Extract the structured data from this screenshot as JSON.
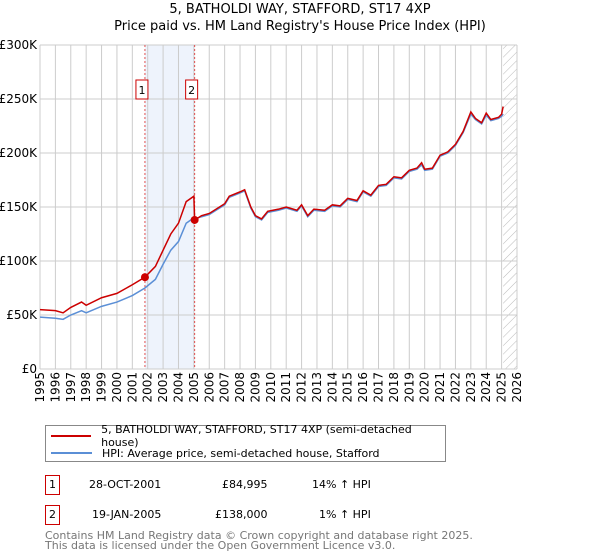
{
  "chart_data": {
    "type": "line",
    "title": "5, BATHOLDI WAY, STAFFORD, ST17 4XP",
    "subtitle": "Price paid vs. HM Land Registry's House Price Index (HPI)",
    "xlabel": "",
    "ylabel": "",
    "xlim": [
      1995,
      2026
    ],
    "ylim": [
      0,
      300000
    ],
    "yticks": [
      {
        "v": 0,
        "label": "£0"
      },
      {
        "v": 50000,
        "label": "£50K"
      },
      {
        "v": 100000,
        "label": "£100K"
      },
      {
        "v": 150000,
        "label": "£150K"
      },
      {
        "v": 200000,
        "label": "£200K"
      },
      {
        "v": 250000,
        "label": "£250K"
      },
      {
        "v": 300000,
        "label": "£300K"
      }
    ],
    "xticks": [
      "1995",
      "1996",
      "1997",
      "1998",
      "1999",
      "2000",
      "2001",
      "2002",
      "2003",
      "2004",
      "2005",
      "2006",
      "2007",
      "2008",
      "2009",
      "2010",
      "2011",
      "2012",
      "2013",
      "2014",
      "2015",
      "2016",
      "2017",
      "2018",
      "2019",
      "2020",
      "2021",
      "2022",
      "2023",
      "2024",
      "2025",
      "2026"
    ],
    "grid": true,
    "x": [
      1995,
      1996,
      1996.5,
      1997,
      1997.7,
      1998,
      1999,
      2000,
      2001,
      2001.82,
      2002.5,
      2003,
      2003.5,
      2004,
      2004.5,
      2005,
      2005.05,
      2005.5,
      2006,
      2007,
      2007.3,
      2008,
      2008.3,
      2008.7,
      2009,
      2009.4,
      2009.8,
      2010.5,
      2011,
      2011.7,
      2012,
      2012.4,
      2012.8,
      2013.5,
      2014,
      2014.5,
      2015,
      2015.6,
      2016,
      2016.5,
      2017,
      2017.5,
      2018,
      2018.5,
      2019,
      2019.5,
      2019.8,
      2020,
      2020.5,
      2021,
      2021.5,
      2022,
      2022.5,
      2023,
      2023.3,
      2023.7,
      2024,
      2024.3,
      2024.8,
      2025,
      2025.1
    ],
    "series": [
      {
        "name": "5, BATHOLDI WAY, STAFFORD, ST17 4XP (semi-detached house)",
        "color": "#cc0000",
        "values": [
          55000,
          54000,
          52000,
          57000,
          62000,
          59000,
          66000,
          70000,
          78000,
          85000,
          95000,
          110000,
          125000,
          135000,
          155000,
          160000,
          138000,
          142000,
          144000,
          153000,
          160000,
          164000,
          166000,
          150000,
          142000,
          139000,
          146000,
          148000,
          150000,
          147000,
          152000,
          142000,
          148000,
          147000,
          152000,
          151000,
          158000,
          156000,
          165000,
          161000,
          170000,
          171000,
          178000,
          177000,
          184000,
          186000,
          191000,
          185000,
          186000,
          198000,
          201000,
          208000,
          220000,
          238000,
          232000,
          228000,
          237000,
          231000,
          233000,
          236000,
          243000
        ]
      },
      {
        "name": "HPI: Average price, semi-detached house, Stafford",
        "color": "#5b8fd6",
        "values": [
          48000,
          47000,
          46000,
          50000,
          54000,
          52000,
          58000,
          62000,
          68000,
          75000,
          83000,
          97000,
          110000,
          118000,
          135000,
          140000,
          139000,
          141000,
          143000,
          152000,
          159000,
          163000,
          165000,
          149000,
          141000,
          138000,
          145000,
          147000,
          149000,
          146000,
          151000,
          141000,
          147000,
          146000,
          151000,
          150000,
          157000,
          155000,
          164000,
          160000,
          169000,
          170000,
          177000,
          176000,
          183000,
          185000,
          189000,
          184000,
          185000,
          197000,
          200000,
          207000,
          219000,
          236000,
          231000,
          227000,
          235000,
          230000,
          232000,
          234000,
          236000
        ]
      }
    ],
    "sales": [
      {
        "id": "1",
        "x": 2001.82,
        "value": 84995
      },
      {
        "id": "2",
        "x": 2005.05,
        "value": 138000
      }
    ],
    "forecast_from": 2025.1
  },
  "legend": {
    "property": "5, BATHOLDI WAY, STAFFORD, ST17 4XP (semi-detached house)",
    "hpi": "HPI: Average price, semi-detached house, Stafford"
  },
  "transactions": [
    {
      "id": "1",
      "date": "28-OCT-2001",
      "price": "£84,995",
      "hpi": "14% ↑ HPI"
    },
    {
      "id": "2",
      "date": "19-JAN-2005",
      "price": "£138,000",
      "hpi": "1% ↑ HPI"
    }
  ],
  "footer": [
    "Contains HM Land Registry data © Crown copyright and database right 2025.",
    "This data is licensed under the Open Government Licence v3.0."
  ]
}
